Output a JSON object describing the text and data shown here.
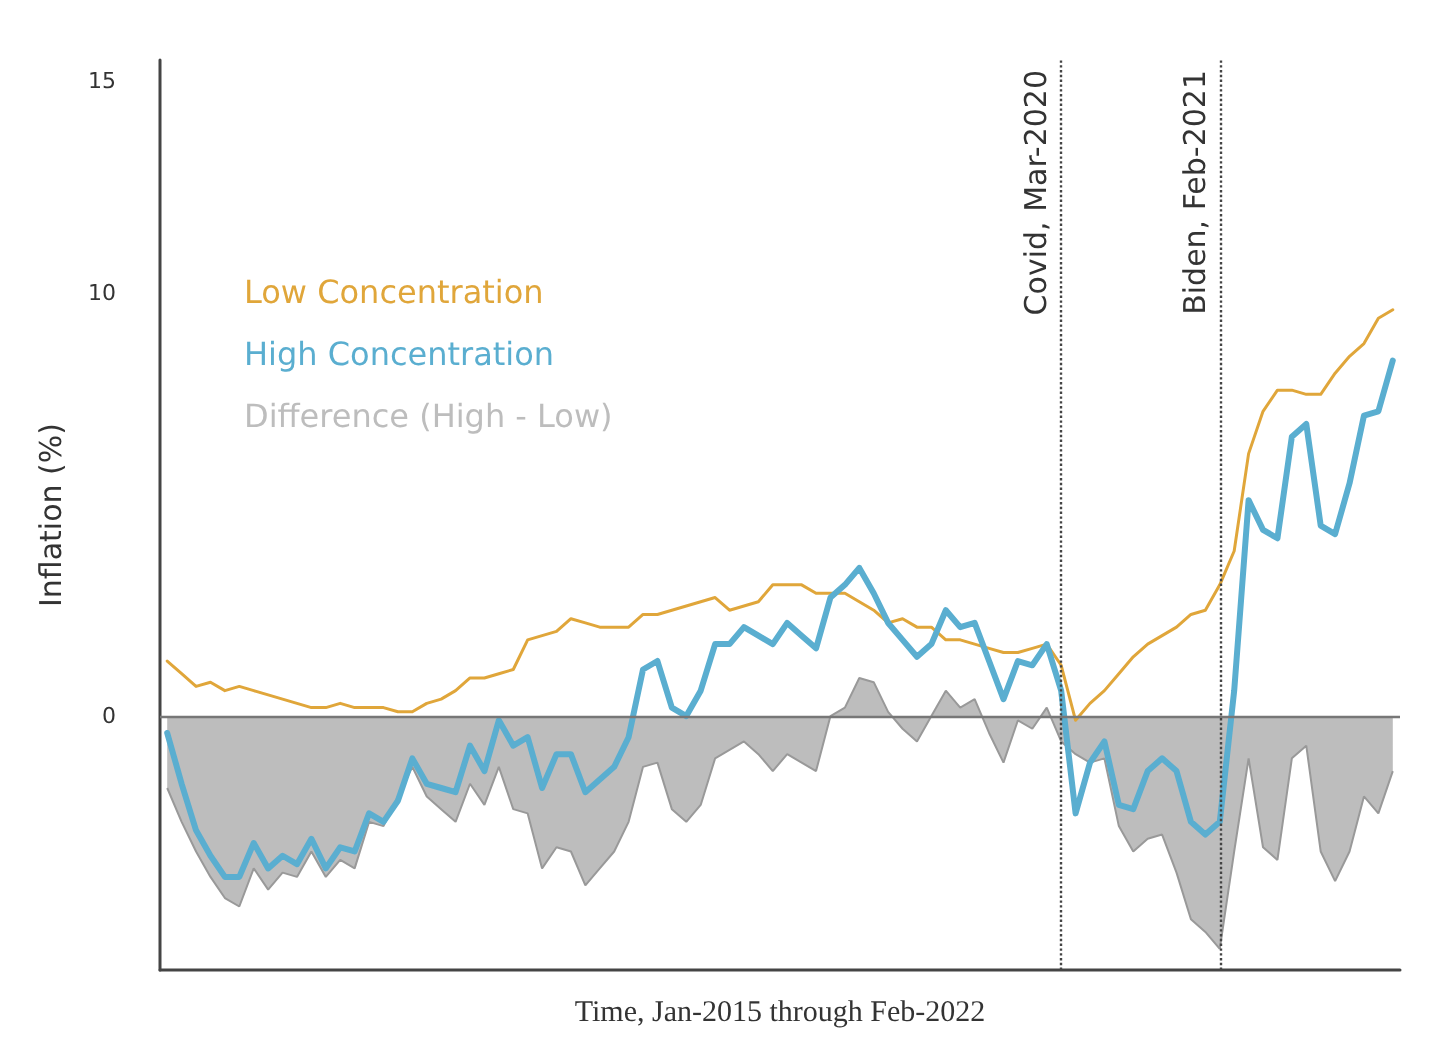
{
  "chart_data": {
    "type": "line",
    "xlabel": "Time, Jan-2015 through Feb-2022",
    "ylabel": "Inflation (%)",
    "categories": [
      null,
      null,
      null,
      null,
      null,
      null,
      null,
      null,
      null,
      null,
      null,
      null,
      null,
      null,
      null,
      null,
      null,
      null,
      null,
      null,
      null,
      null,
      null,
      null,
      null,
      null,
      null,
      null,
      null,
      null,
      null,
      null,
      null,
      null,
      null,
      null,
      null,
      null,
      null,
      null,
      null,
      null,
      null,
      null,
      null,
      null,
      null,
      null,
      null,
      null,
      null,
      null,
      null,
      null,
      null,
      null,
      null,
      null,
      null,
      null,
      null,
      null,
      null,
      null,
      null,
      null,
      null,
      null,
      null,
      null,
      null,
      null,
      null,
      null,
      null,
      null,
      null,
      null,
      null,
      null,
      null,
      null,
      null,
      null,
      null,
      null
    ],
    "ylim": [
      -6,
      15.5
    ],
    "yticks": [
      0,
      10,
      15
    ],
    "tick_labels": "y",
    "legend": false,
    "grid": false,
    "line_style": "solid",
    "annotations": [
      "Covid, Mar-2020",
      "Biden, Feb-2021"
    ],
    "series": [
      {
        "name": "Low Concentration",
        "color": "#e0a63a",
        "values": [
          1.3,
          1.0,
          0.7,
          0.8,
          0.6,
          0.7,
          0.6,
          0.5,
          0.4,
          0.3,
          0.2,
          0.2,
          0.3,
          0.2,
          0.2,
          0.2,
          0.1,
          0.1,
          0.3,
          0.4,
          0.6,
          0.9,
          0.9,
          1.0,
          1.1,
          1.8,
          1.9,
          2.0,
          2.3,
          2.2,
          2.1,
          2.1,
          2.1,
          2.4,
          2.4,
          2.5,
          2.6,
          2.7,
          2.8,
          2.5,
          2.6,
          2.7,
          3.1,
          3.1,
          3.1,
          2.9,
          2.9,
          2.9,
          2.7,
          2.5,
          2.2,
          2.3,
          2.1,
          2.1,
          1.8,
          1.8,
          1.7,
          1.6,
          1.5,
          1.5,
          1.6,
          1.7,
          1.2,
          -0.1,
          0.3,
          0.6,
          1.0,
          1.4,
          1.7,
          1.9,
          2.1,
          2.4,
          2.5,
          3.1,
          3.9,
          6.2,
          7.2,
          7.7,
          7.7,
          7.6,
          7.6,
          8.1,
          8.5,
          8.8,
          9.4,
          9.6
        ]
      },
      {
        "name": "High Concentration",
        "color": "#5aaed0",
        "values": [
          -0.4,
          -1.6,
          -2.7,
          -3.3,
          -3.8,
          -3.8,
          -3.0,
          -3.6,
          -3.3,
          -3.5,
          -2.9,
          -3.6,
          -3.1,
          -3.2,
          -2.3,
          -2.5,
          -2.0,
          -1.0,
          -1.6,
          -1.7,
          -1.8,
          -0.7,
          -1.3,
          -0.1,
          -0.7,
          -0.5,
          -1.7,
          -0.9,
          -0.9,
          -1.8,
          -1.5,
          -1.2,
          -0.5,
          1.1,
          1.3,
          0.2,
          0.0,
          0.6,
          1.7,
          1.7,
          2.1,
          1.9,
          1.7,
          2.2,
          1.9,
          1.6,
          2.8,
          3.1,
          3.5,
          2.9,
          2.2,
          1.8,
          1.4,
          1.7,
          2.5,
          2.1,
          2.2,
          1.3,
          0.4,
          1.3,
          1.2,
          1.7,
          0.6,
          -2.3,
          -1.1,
          -0.6,
          -2.1,
          -2.2,
          -1.3,
          -1.0,
          -1.3,
          -2.5,
          -2.8,
          -2.5,
          0.6,
          5.1,
          4.4,
          4.2,
          6.6,
          6.9,
          4.5,
          4.3,
          5.5,
          7.1,
          7.2,
          8.4
        ]
      },
      {
        "name": "Difference (High - Low)",
        "type": "area",
        "color": "#bdbdbd",
        "values": [
          -1.7,
          -2.5,
          -3.2,
          -3.8,
          -4.3,
          -4.5,
          -3.6,
          -4.1,
          -3.7,
          -3.8,
          -3.2,
          -3.8,
          -3.4,
          -3.6,
          -2.5,
          -2.6,
          -1.9,
          -1.2,
          -1.9,
          -2.2,
          -2.5,
          -1.6,
          -2.1,
          -1.2,
          -2.2,
          -2.3,
          -3.6,
          -3.1,
          -3.2,
          -4.0,
          -3.6,
          -3.2,
          -2.5,
          -1.2,
          -1.1,
          -2.2,
          -2.5,
          -2.1,
          -1.0,
          -0.8,
          -0.6,
          -0.9,
          -1.3,
          -0.9,
          -1.1,
          -1.3,
          0.0,
          0.2,
          0.9,
          0.8,
          0.1,
          -0.3,
          -0.6,
          0.0,
          0.6,
          0.2,
          0.4,
          -0.4,
          -1.1,
          -0.1,
          -0.3,
          0.2,
          -0.6,
          -0.9,
          -1.1,
          -1.0,
          -2.6,
          -3.2,
          -2.9,
          -2.8,
          -3.7,
          -4.8,
          -5.1,
          -5.5,
          -3.2,
          -1.0,
          -3.1,
          -3.4,
          -1.0,
          -0.7,
          -3.2,
          -3.9,
          -3.2,
          -1.9,
          -2.3,
          -1.3
        ]
      }
    ],
    "ref_lines": [
      {
        "axis": "y",
        "value": 0,
        "color": "#777777",
        "line_style": "solid"
      }
    ]
  }
}
